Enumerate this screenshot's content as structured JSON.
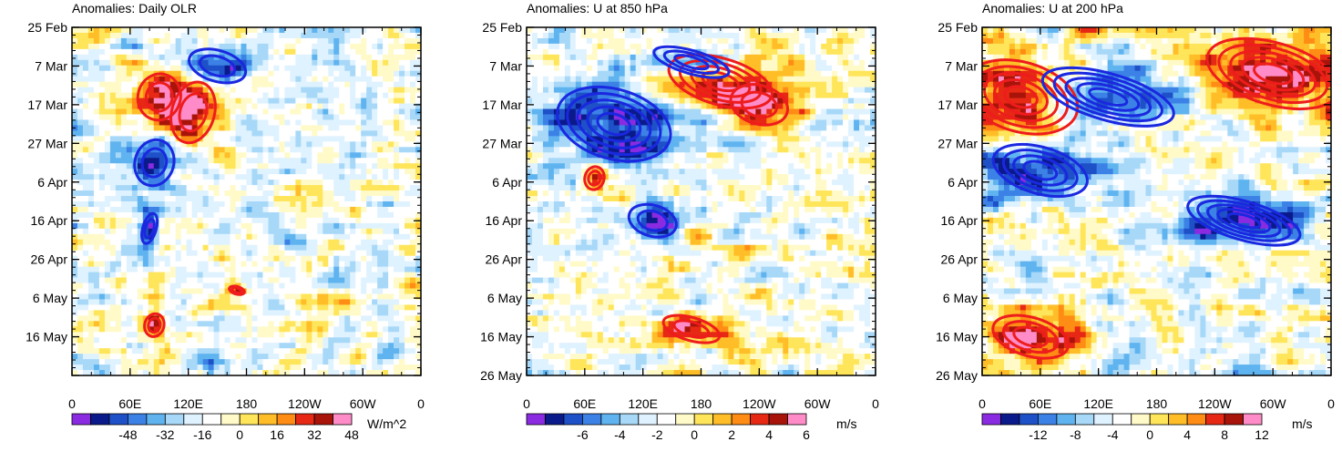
{
  "chart_data": [
    {
      "type": "heatmap",
      "title": "Anomalies: Daily OLR",
      "x_ticks": [
        "0",
        "60E",
        "120E",
        "180",
        "120W",
        "60W",
        "0"
      ],
      "y_ticks": [
        "25 Feb",
        "7 Mar",
        "17 Mar",
        "27 Mar",
        "6 Apr",
        "16 Apr",
        "26 Apr",
        "6 May",
        "16 May"
      ],
      "xlim_deg_east": [
        0,
        360
      ],
      "ylim_days_from_25feb": [
        0,
        90
      ],
      "colorbar": {
        "labels": [
          "-48",
          "-32",
          "-16",
          "0",
          "16",
          "32",
          "48"
        ],
        "unit": "W/m^2",
        "levels": [
          -56,
          -48,
          -40,
          -32,
          -24,
          -16,
          -8,
          0,
          8,
          16,
          24,
          32,
          40,
          48,
          56
        ]
      },
      "red_contours": [
        {
          "lon": 90,
          "day": 18,
          "rlon": 22,
          "rday": 6
        },
        {
          "lon": 125,
          "day": 22,
          "rlon": 22,
          "rday": 8
        },
        {
          "lon": 170,
          "day": 68,
          "rlon": 8,
          "rday": 1
        },
        {
          "lon": 85,
          "day": 77,
          "rlon": 10,
          "rday": 3
        }
      ],
      "blue_contours": [
        {
          "lon": 150,
          "day": 10,
          "rlon": 30,
          "rday": 4
        },
        {
          "lon": 85,
          "day": 35,
          "rlon": 20,
          "rday": 6
        },
        {
          "lon": 80,
          "day": 52,
          "rlon": 7,
          "rday": 4
        }
      ]
    },
    {
      "type": "heatmap",
      "title": "Anomalies: U at 850 hPa",
      "x_ticks": [
        "0",
        "60E",
        "120E",
        "180",
        "120W",
        "60W",
        "0"
      ],
      "y_ticks": [
        "25 Feb",
        "7 Mar",
        "17 Mar",
        "27 Mar",
        "6 Apr",
        "16 Apr",
        "26 Apr",
        "6 May",
        "16 May",
        "26 May"
      ],
      "xlim_deg_east": [
        0,
        360
      ],
      "ylim_days_from_25feb": [
        0,
        90
      ],
      "colorbar": {
        "labels": [
          "-6",
          "-4",
          "-2",
          "0",
          "2",
          "4",
          "6"
        ],
        "unit": "m/s",
        "levels": [
          -7,
          -6,
          -5,
          -4,
          -3,
          -2,
          -1,
          0,
          1,
          2,
          3,
          4,
          5,
          6,
          7
        ]
      },
      "red_contours": [
        {
          "lon": 200,
          "day": 14,
          "rlon": 55,
          "rday": 6
        },
        {
          "lon": 240,
          "day": 20,
          "rlon": 30,
          "rday": 5
        },
        {
          "lon": 70,
          "day": 39,
          "rlon": 10,
          "rday": 3
        },
        {
          "lon": 170,
          "day": 78,
          "rlon": 30,
          "rday": 3
        }
      ],
      "blue_contours": [
        {
          "lon": 170,
          "day": 9,
          "rlon": 40,
          "rday": 3
        },
        {
          "lon": 90,
          "day": 25,
          "rlon": 60,
          "rday": 9
        },
        {
          "lon": 130,
          "day": 50,
          "rlon": 25,
          "rday": 4
        }
      ]
    },
    {
      "type": "heatmap",
      "title": "Anomalies: U at 200 hPa",
      "x_ticks": [
        "0",
        "60E",
        "120E",
        "180",
        "120W",
        "60W",
        "0"
      ],
      "y_ticks": [
        "25 Feb",
        "7 Mar",
        "17 Mar",
        "27 Mar",
        "6 Apr",
        "16 Apr",
        "26 Apr",
        "6 May",
        "16 May",
        "26 May"
      ],
      "xlim_deg_east": [
        0,
        360
      ],
      "ylim_days_from_25feb": [
        0,
        90
      ],
      "colorbar": {
        "labels": [
          "-12",
          "-8",
          "-4",
          "0",
          "4",
          "8",
          "12"
        ],
        "unit": "m/s",
        "levels": [
          -14,
          -12,
          -10,
          -8,
          -6,
          -4,
          -2,
          0,
          2,
          4,
          6,
          8,
          10,
          12,
          14
        ]
      },
      "red_contours": [
        {
          "lon": 40,
          "day": 18,
          "rlon": 60,
          "rday": 9
        },
        {
          "lon": 300,
          "day": 12,
          "rlon": 70,
          "rday": 8
        },
        {
          "lon": 50,
          "day": 80,
          "rlon": 40,
          "rday": 5
        }
      ],
      "blue_contours": [
        {
          "lon": 130,
          "day": 18,
          "rlon": 70,
          "rday": 6
        },
        {
          "lon": 60,
          "day": 37,
          "rlon": 50,
          "rday": 6
        },
        {
          "lon": 270,
          "day": 50,
          "rlon": 60,
          "rday": 5
        }
      ]
    }
  ],
  "palette": [
    "#8a2be2",
    "#0a1a8a",
    "#1e50c8",
    "#3c82e6",
    "#5fb4f0",
    "#a8d8f8",
    "#dff2ff",
    "#ffffff",
    "#fffac8",
    "#ffe55a",
    "#ffbe28",
    "#ff8c14",
    "#e62814",
    "#a8140a",
    "#ff8cc8"
  ],
  "contour_colors": {
    "positive": "#ee1c1c",
    "negative": "#1a28e0"
  }
}
